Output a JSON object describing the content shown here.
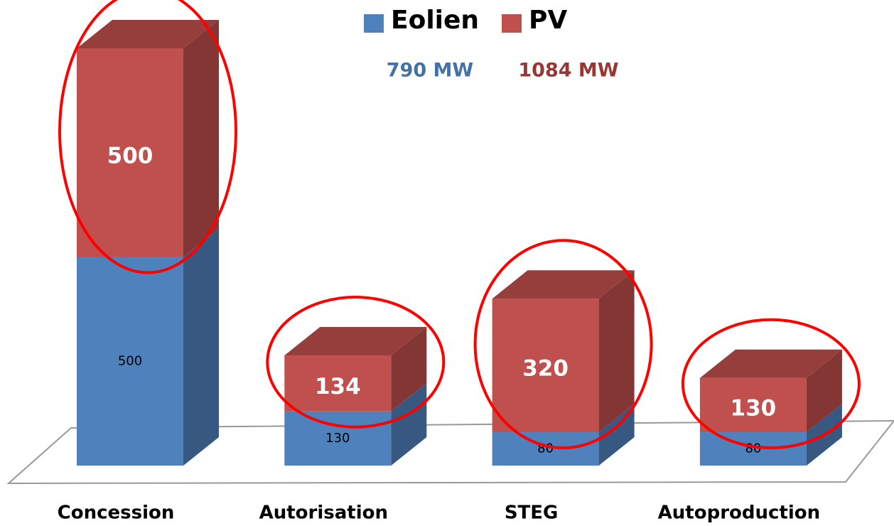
{
  "chart_data": {
    "type": "bar3d_stacked",
    "categories": [
      "Concession",
      "Autorisation",
      "STEG",
      "Autoproduction"
    ],
    "series": [
      {
        "name": "Eolien",
        "color": "#4f81bd",
        "values": [
          500,
          130,
          80,
          80
        ]
      },
      {
        "name": "PV",
        "color": "#c0504d",
        "values": [
          500,
          134,
          320,
          130
        ]
      }
    ],
    "annotations": [
      {
        "text": "790 MW",
        "color": "#4471a8"
      },
      {
        "text": "1084 MW",
        "color": "#953735"
      }
    ],
    "legend": "top"
  }
}
